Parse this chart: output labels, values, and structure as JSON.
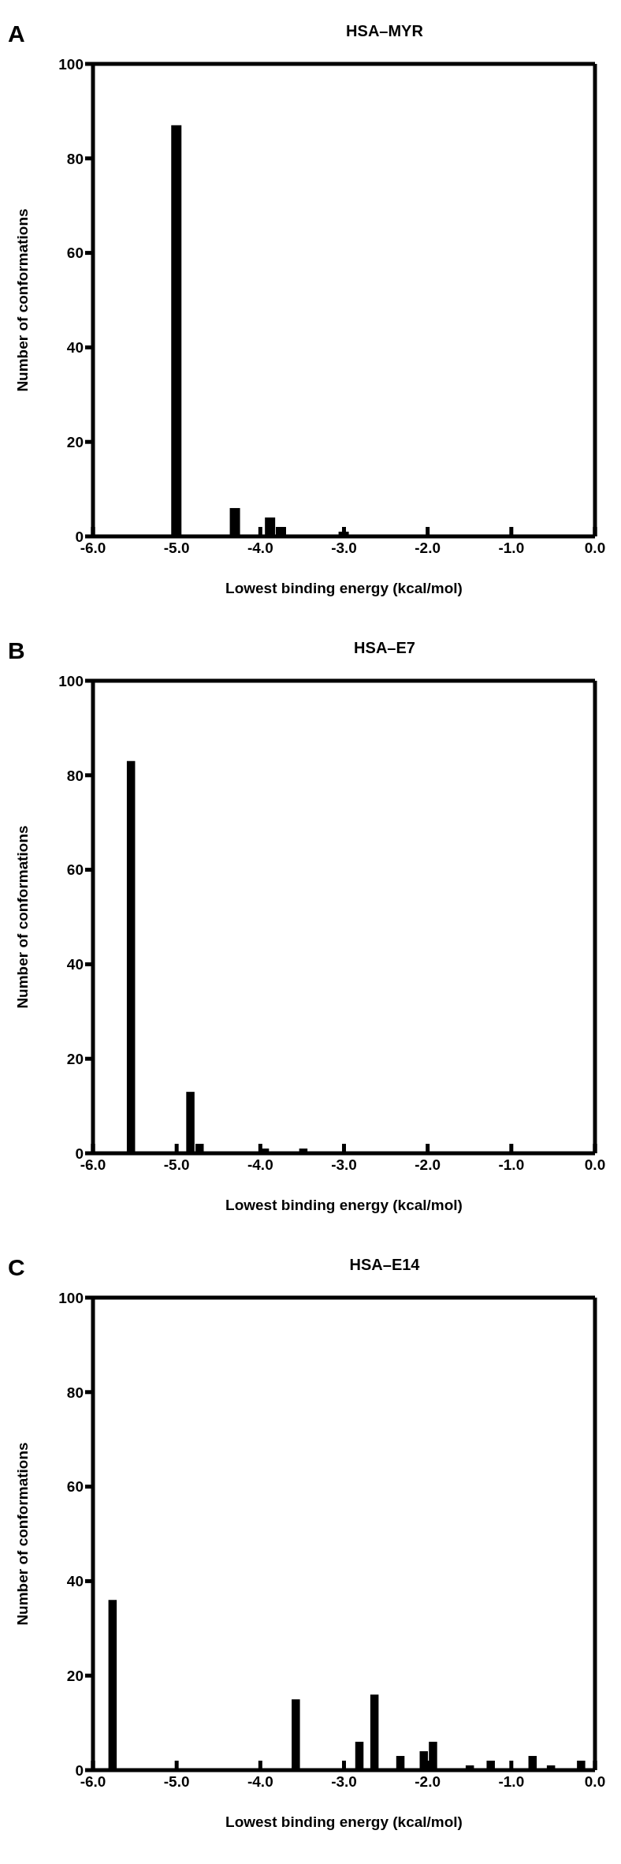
{
  "chart_data": [
    {
      "type": "bar",
      "title": "HSA–MYR",
      "annotations": [
        "A"
      ],
      "xlabel": "Lowest binding energy (kcal/mol)",
      "ylabel": "Number of conformations",
      "color": "#000000",
      "x": [
        -5.0,
        -4.3,
        -3.88,
        -3.75,
        -3.0
      ],
      "values": [
        87,
        6,
        4,
        2,
        1
      ],
      "xlim": [
        -6,
        0
      ],
      "xticks": [
        {
          "value": -6,
          "label": "-6.0"
        },
        {
          "value": -5,
          "label": "-5.0"
        },
        {
          "value": -4,
          "label": "-4.0"
        },
        {
          "value": -3,
          "label": "-3.0"
        },
        {
          "value": -2,
          "label": "-2.0"
        },
        {
          "value": -1,
          "label": "-1.0"
        },
        {
          "value": 0,
          "label": "0.0"
        }
      ],
      "ylim": [
        0,
        100
      ],
      "yticks": [
        0,
        20,
        40,
        60,
        80,
        100
      ],
      "grid": false,
      "legend": false
    },
    {
      "type": "bar",
      "title": "HSA–E7",
      "annotations": [
        "B"
      ],
      "xlabel": "Lowest binding energy (kcal/mol)",
      "ylabel": "Number of conformations",
      "color": "#000000",
      "x": [
        -5.55,
        -4.84,
        -4.73,
        -3.95,
        -3.49
      ],
      "values": [
        83,
        13,
        2,
        1,
        1
      ],
      "xlim": [
        -6,
        0
      ],
      "xticks": [
        {
          "value": -6,
          "label": "-6.0"
        },
        {
          "value": -5,
          "label": "-5.0"
        },
        {
          "value": -4,
          "label": "-4.0"
        },
        {
          "value": -3,
          "label": "-3.0"
        },
        {
          "value": -2,
          "label": "-2.0"
        },
        {
          "value": -1,
          "label": "-1.0"
        },
        {
          "value": 0,
          "label": "0.0"
        }
      ],
      "ylim": [
        0,
        100
      ],
      "yticks": [
        0,
        20,
        40,
        60,
        80,
        100
      ],
      "grid": false,
      "legend": false
    },
    {
      "type": "bar",
      "title": "HSA–E14",
      "annotations": [
        "C"
      ],
      "xlabel": "Lowest binding energy (kcal/mol)",
      "ylabel": "Number of conformations",
      "color": "#000000",
      "x": [
        -5.77,
        -3.58,
        -2.82,
        -2.64,
        -2.33,
        -2.05,
        -1.94,
        -1.5,
        -1.25,
        -0.75,
        -0.53,
        -0.17
      ],
      "values": [
        36,
        15,
        6,
        16,
        3,
        4,
        6,
        1,
        2,
        3,
        1,
        2
      ],
      "xlim": [
        -6,
        0
      ],
      "xticks": [
        {
          "value": -6,
          "label": "-6.0"
        },
        {
          "value": -5,
          "label": "-5.0"
        },
        {
          "value": -4,
          "label": "-4.0"
        },
        {
          "value": -3,
          "label": "-3.0"
        },
        {
          "value": -2,
          "label": "-2.0"
        },
        {
          "value": -1,
          "label": "-1.0"
        },
        {
          "value": 0,
          "label": "0.0"
        }
      ],
      "ylim": [
        0,
        100
      ],
      "yticks": [
        0,
        20,
        40,
        60,
        80,
        100
      ],
      "grid": false,
      "legend": false
    }
  ]
}
